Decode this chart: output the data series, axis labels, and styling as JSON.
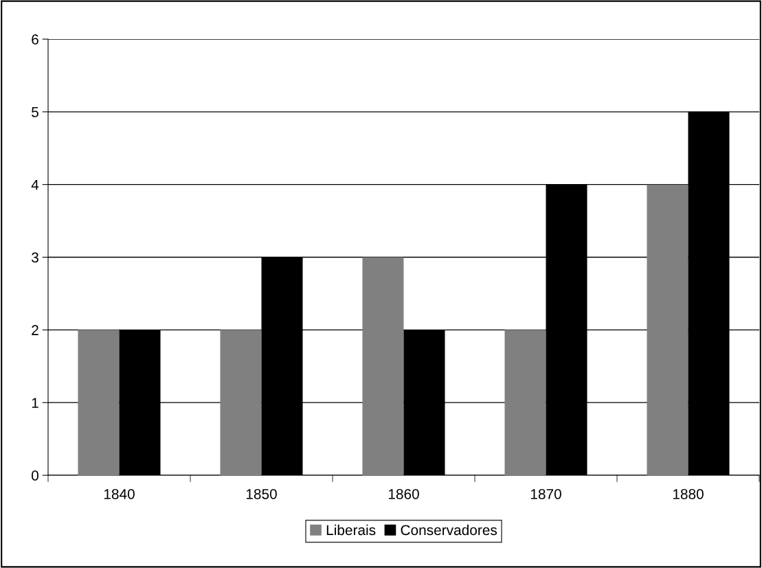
{
  "chart_data": {
    "type": "bar",
    "categories": [
      "1840",
      "1850",
      "1860",
      "1870",
      "1880"
    ],
    "series": [
      {
        "name": "Liberais",
        "color": "#808080",
        "values": [
          2,
          2,
          3,
          2,
          4
        ]
      },
      {
        "name": "Conservadores",
        "color": "#000000",
        "values": [
          2,
          3,
          2,
          4,
          5
        ]
      }
    ],
    "ylim": [
      0,
      6
    ],
    "yticks": [
      0,
      1,
      2,
      3,
      4,
      5,
      6
    ],
    "grid": "y",
    "legend": "bottom"
  }
}
